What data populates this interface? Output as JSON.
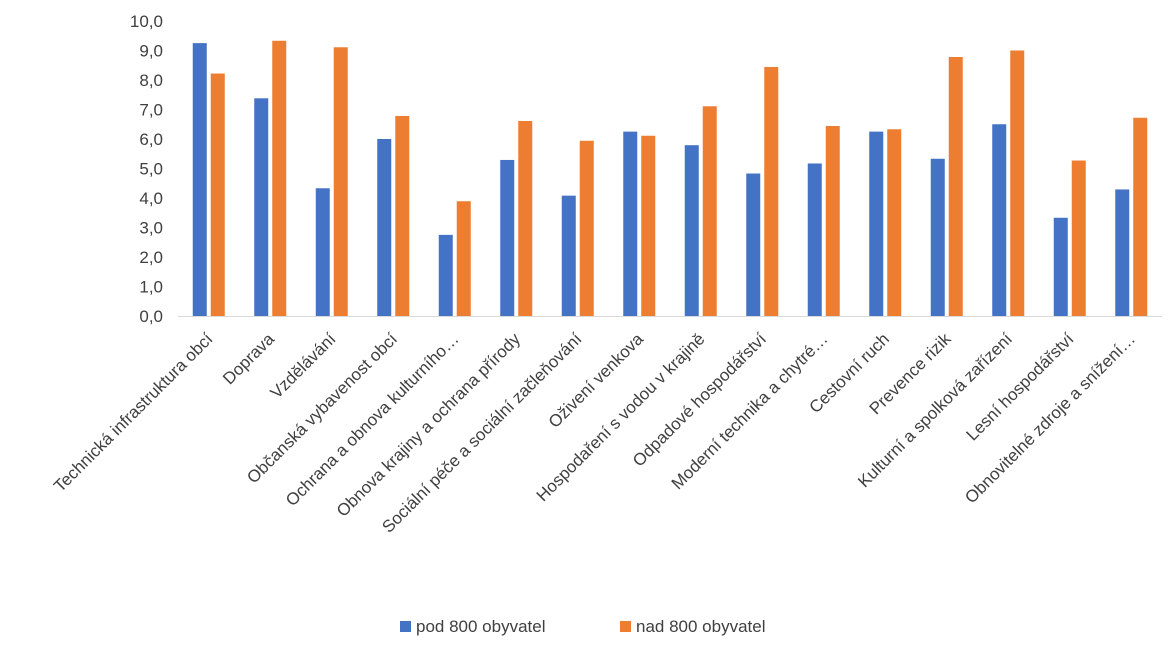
{
  "chart_data": {
    "type": "bar",
    "categories": [
      "Technická infrastruktura obcí",
      "Doprava",
      "Vzdělávání",
      "Občanská vybavenost obcí",
      "Ochrana a obnova kulturního…",
      "Obnova krajiny a ochrana přírody",
      "Sociální péče a sociální začleňování",
      "Oživení venkova",
      "Hospodaření s vodou v krajině",
      "Odpadové hospodářství",
      "Moderní technika a chytré…",
      "Cestovní ruch",
      "Prevence rizik",
      "Kulturní a spolková zařízení",
      "Lesní hospodářství",
      "Obnovitelné zdroje a snížení…"
    ],
    "series": [
      {
        "name": "pod 800 obyvatel",
        "color": "#4472C4",
        "values": [
          9.25,
          7.38,
          4.33,
          6.0,
          2.75,
          5.29,
          4.08,
          6.25,
          5.79,
          4.83,
          5.17,
          6.25,
          5.33,
          6.5,
          3.33,
          4.29
        ]
      },
      {
        "name": "nad 800 obyvatel",
        "color": "#ED7D31",
        "values": [
          8.22,
          9.33,
          9.11,
          6.78,
          3.89,
          6.61,
          5.94,
          6.11,
          7.11,
          8.44,
          6.44,
          6.33,
          8.78,
          9.0,
          5.27,
          6.72
        ]
      }
    ],
    "ylim": [
      0,
      10
    ],
    "y_ticks": [
      "0,0",
      "1,0",
      "2,0",
      "3,0",
      "4,0",
      "5,0",
      "6,0",
      "7,0",
      "8,0",
      "9,0",
      "10,0"
    ],
    "grid": false,
    "legend_position": "bottom"
  }
}
